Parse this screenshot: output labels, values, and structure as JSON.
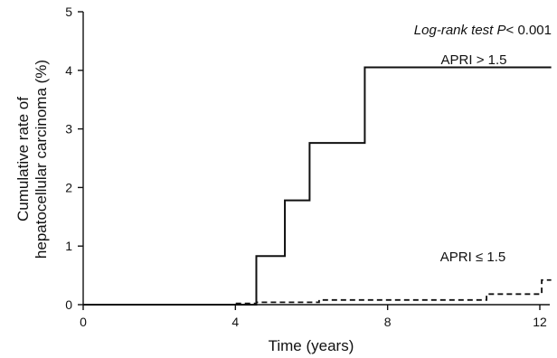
{
  "chart_data": {
    "type": "line",
    "title": "",
    "xlabel": "Time (years)",
    "ylabel_lines": [
      "Cumulative rate of",
      "hepatocellular carcinoma (%)"
    ],
    "xlim": [
      0,
      12.3
    ],
    "ylim": [
      0,
      5
    ],
    "xticks": [
      0,
      4,
      8,
      12
    ],
    "yticks": [
      0,
      1,
      2,
      3,
      4,
      5
    ],
    "x_tick_labels": [
      "0",
      "4",
      "8",
      "12"
    ],
    "y_tick_labels": [
      "0",
      "1",
      "2",
      "3",
      "4",
      "5"
    ],
    "grid": false,
    "annotation": {
      "prefix": "Log-rank test ",
      "italic_var": "P",
      "suffix": "< 0.001"
    },
    "series": [
      {
        "name": "APRI > 1.5",
        "style": "solid",
        "color": "#111111",
        "steps": [
          [
            0,
            0
          ],
          [
            4.55,
            0.83
          ],
          [
            5.3,
            1.78
          ],
          [
            5.95,
            2.76
          ],
          [
            7.4,
            4.05
          ],
          [
            12.3,
            4.05
          ]
        ]
      },
      {
        "name": "APRI ≤ 1.5",
        "style": "dashed",
        "color": "#111111",
        "steps": [
          [
            0,
            0
          ],
          [
            4.0,
            0.02
          ],
          [
            4.55,
            0.04
          ],
          [
            6.2,
            0.08
          ],
          [
            10.6,
            0.18
          ],
          [
            12.05,
            0.42
          ],
          [
            12.3,
            0.42
          ]
        ]
      }
    ]
  }
}
